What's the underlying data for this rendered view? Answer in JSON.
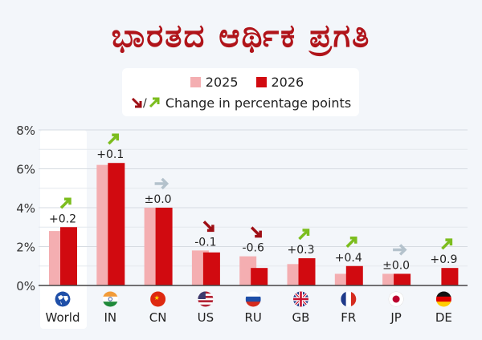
{
  "title": "ಭಾರತದ ಆರ್ಥಿಕ ಪ್ರಗತಿ",
  "legend": {
    "label_2025": "2025",
    "label_2026": "2026",
    "change_label": "Change in percentage points"
  },
  "colors": {
    "c2025": "#f4aeb1",
    "c2026": "#d10a10",
    "up": "#7cbd1e",
    "down": "#9e0e14",
    "flat": "#b4c2cc",
    "title": "#b0141a"
  },
  "chart_data": {
    "type": "bar",
    "categories": [
      "World",
      "IN",
      "CN",
      "US",
      "RU",
      "GB",
      "FR",
      "JP",
      "DE"
    ],
    "flags": [
      "globe-icon",
      "flag-india-icon",
      "flag-china-icon",
      "flag-usa-icon",
      "flag-russia-icon",
      "flag-uk-icon",
      "flag-france-icon",
      "flag-japan-icon",
      "flag-germany-icon"
    ],
    "series": [
      {
        "name": "2025",
        "values": [
          2.8,
          6.2,
          4.0,
          1.8,
          1.5,
          1.1,
          0.6,
          0.6,
          0.0
        ]
      },
      {
        "name": "2026",
        "values": [
          3.0,
          6.3,
          4.0,
          1.7,
          0.9,
          1.4,
          1.0,
          0.6,
          0.9
        ]
      }
    ],
    "change_labels": [
      "+0.2",
      "+0.1",
      "±0.0",
      "-0.1",
      "-0.6",
      "+0.3",
      "+0.4",
      "±0.0",
      "+0.9"
    ],
    "change_direction": [
      "up",
      "up",
      "flat",
      "down",
      "down",
      "up",
      "up",
      "flat",
      "up"
    ],
    "yticks": [
      "0%",
      "2%",
      "4%",
      "6%",
      "8%"
    ],
    "ylim": [
      0,
      8
    ],
    "grid": true,
    "legend_placement": "top"
  }
}
